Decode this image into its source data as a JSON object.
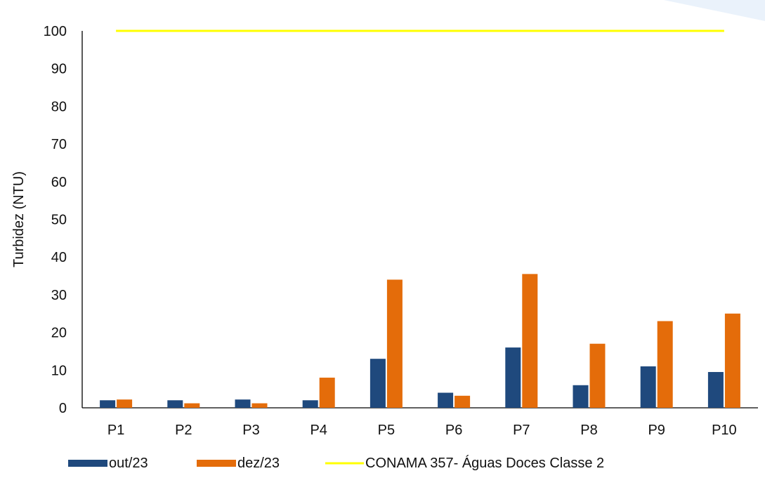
{
  "chart_data": {
    "type": "bar",
    "ylabel": "Turbidez (NTU)",
    "xlabel": "",
    "ylim": [
      0,
      100
    ],
    "yticks": [
      0,
      10,
      20,
      30,
      40,
      50,
      60,
      70,
      80,
      90,
      100
    ],
    "categories": [
      "P1",
      "P2",
      "P3",
      "P4",
      "P5",
      "P6",
      "P7",
      "P8",
      "P9",
      "P10"
    ],
    "series": [
      {
        "name": "out/23",
        "color": "#1f497d",
        "values": [
          2,
          2,
          2.2,
          2,
          13,
          4,
          16,
          6,
          11,
          9.5
        ]
      },
      {
        "name": "dez/23",
        "color": "#e46c0a",
        "values": [
          2.2,
          1.2,
          1.2,
          8,
          34,
          3.2,
          35.5,
          17,
          23,
          25
        ]
      }
    ],
    "reference_line": {
      "name": "CONAMA 357- Águas Doces Classe 2",
      "value": 100,
      "color": "#ffff00"
    },
    "grid": false,
    "legend_position": "bottom"
  }
}
